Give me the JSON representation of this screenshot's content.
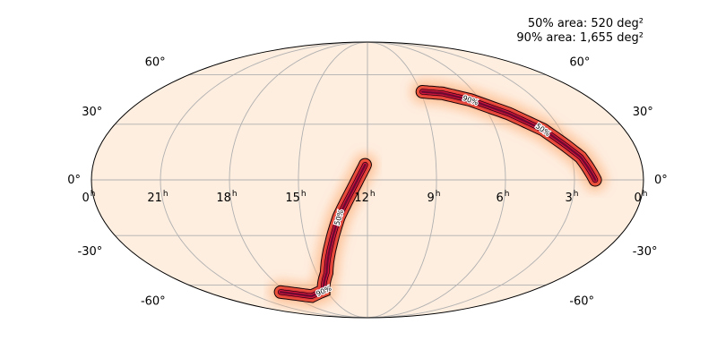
{
  "chart_data": {
    "type": "heatmap",
    "projection": "mollweide",
    "grid": true,
    "title": "",
    "area_labels": {
      "area_50": "50% area: 520 deg²",
      "area_90": "90% area: 1,655 deg²"
    },
    "ra_ticks": [
      {
        "hours": 24,
        "label": "0",
        "sup": "h"
      },
      {
        "hours": 21,
        "label": "21",
        "sup": "h"
      },
      {
        "hours": 18,
        "label": "18",
        "sup": "h"
      },
      {
        "hours": 15,
        "label": "15",
        "sup": "h"
      },
      {
        "hours": 12,
        "label": "12",
        "sup": "h"
      },
      {
        "hours": 9,
        "label": "9",
        "sup": "h"
      },
      {
        "hours": 6,
        "label": "6",
        "sup": "h"
      },
      {
        "hours": 3,
        "label": "3",
        "sup": "h"
      },
      {
        "hours": 0,
        "label": "0",
        "sup": "h"
      }
    ],
    "dec_ticks_left": [
      {
        "dec": 60,
        "label": "60°"
      },
      {
        "dec": 30,
        "label": "30°"
      },
      {
        "dec": 0,
        "label": "0°"
      },
      {
        "dec": -30,
        "label": "-30°"
      },
      {
        "dec": -60,
        "label": "-60°"
      }
    ],
    "dec_ticks_right": [
      {
        "dec": 60,
        "label": "60°"
      },
      {
        "dec": 30,
        "label": "30°"
      },
      {
        "dec": 0,
        "label": "0°"
      },
      {
        "dec": -30,
        "label": "-30°"
      },
      {
        "dec": -60,
        "label": "-60°"
      }
    ],
    "contour_labels": {
      "c50": "50%",
      "c90": "90%"
    },
    "colors": {
      "background": "#feeee0",
      "grid": "#b0b0b0",
      "outline": "#000000",
      "low": "#fdb582",
      "mid": "#f4653a",
      "high": "#d0143e",
      "peak": "#6e0a30"
    },
    "arcs": [
      {
        "name": "north-arc",
        "spine": [
          [
            8.9,
            49
          ],
          [
            7.8,
            48
          ],
          [
            6.5,
            44
          ],
          [
            5.0,
            36
          ],
          [
            3.8,
            27
          ],
          [
            2.6,
            12
          ],
          [
            2.1,
            0
          ]
        ],
        "spread": 1.4,
        "label90_at": 2,
        "label50_at": 4
      },
      {
        "name": "south-arc",
        "spine": [
          [
            12.1,
            8
          ],
          [
            12.6,
            -4
          ],
          [
            13.3,
            -20
          ],
          [
            13.8,
            -35
          ],
          [
            14.4,
            -52
          ],
          [
            15.2,
            -64
          ],
          [
            16.5,
            -68
          ],
          [
            18.5,
            -65
          ]
        ],
        "spread": 1.4,
        "label90_at": 5,
        "label50_at": 2
      }
    ]
  }
}
